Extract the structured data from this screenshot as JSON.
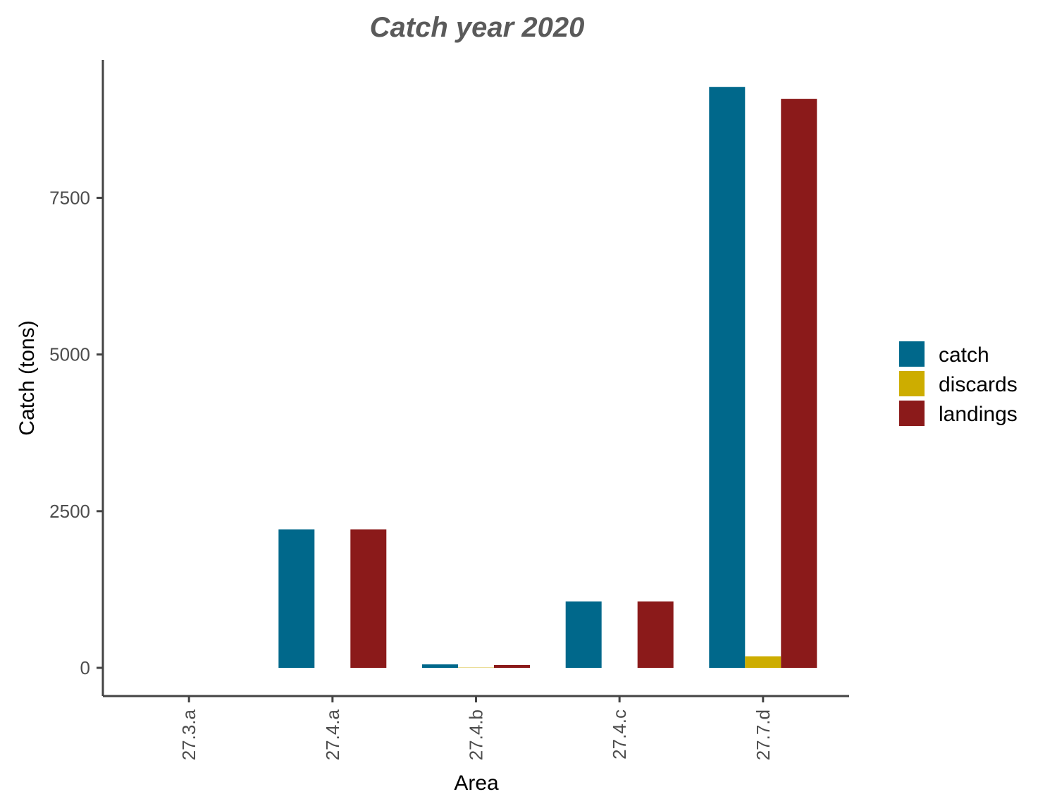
{
  "chart_data": {
    "type": "bar",
    "title": "Catch year 2020",
    "xlabel": "Area",
    "ylabel": "Catch (tons)",
    "categories": [
      "27.3.a",
      "27.4.a",
      "27.4.b",
      "27.4.c",
      "27.7.d"
    ],
    "series": [
      {
        "name": "catch",
        "color": "#00688B",
        "values": [
          0,
          2210,
          55,
          1060,
          9270
        ]
      },
      {
        "name": "discards",
        "color": "#CDAD00",
        "values": [
          0,
          0,
          5,
          0,
          185
        ]
      },
      {
        "name": "landings",
        "color": "#8B1A1A",
        "values": [
          0,
          2210,
          45,
          1060,
          9080
        ]
      }
    ],
    "yticks": [
      0,
      2500,
      5000,
      7500
    ],
    "ylim": [
      -450,
      9700
    ],
    "grid": false,
    "legend": "right"
  }
}
